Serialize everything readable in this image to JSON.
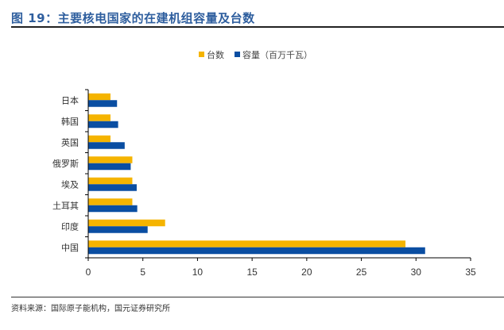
{
  "title": "图 19：主要核电国家的在建机组容量及台数",
  "source": "资料来源：国际原子能机构，国元证券研究所",
  "chart_data": {
    "type": "bar",
    "orientation": "horizontal",
    "categories": [
      "日本",
      "韩国",
      "英国",
      "俄罗斯",
      "埃及",
      "土耳其",
      "印度",
      "中国"
    ],
    "series": [
      {
        "name": "台数",
        "color": "#f5b400",
        "values": [
          2,
          2,
          2,
          4,
          4,
          4,
          7,
          29
        ]
      },
      {
        "name": "容量（百万千瓦）",
        "color": "#0a4ea2",
        "values": [
          2.6,
          2.7,
          3.3,
          3.85,
          4.4,
          4.45,
          5.4,
          30.8
        ]
      }
    ],
    "xlim": [
      0,
      35
    ],
    "xticks": [
      0,
      5,
      10,
      15,
      20,
      25,
      30,
      35
    ],
    "legend": "top-center",
    "grid": false
  }
}
